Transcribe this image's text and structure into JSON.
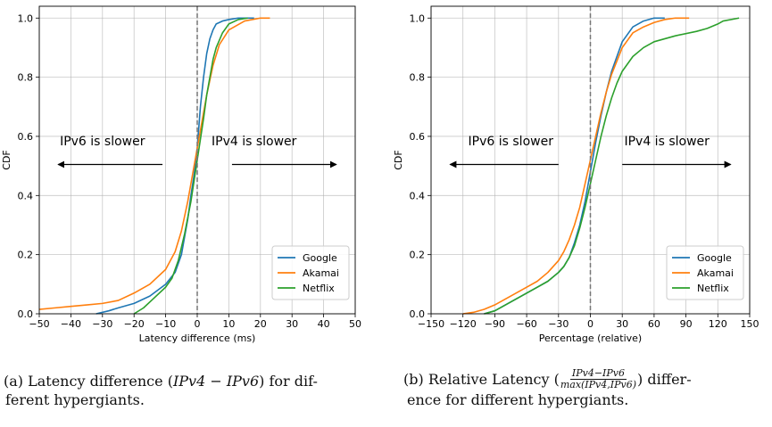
{
  "colors": {
    "Google": "#1f77b4",
    "Akamai": "#ff7f0e",
    "Netflix": "#2ca02c"
  },
  "captions": {
    "a": {
      "prefix": "(a) Latency difference (",
      "formula": "IPv4 − IPv6",
      "suffix": ") for dif-",
      "line2": "ferent hypergiants."
    },
    "b": {
      "prefix": "(b) Relative Latency (",
      "numerator": "IPv4−IPv6",
      "denominator": "max(IPv4,IPv6)",
      "suffix": ") differ-",
      "line2": "ence for different hypergiants."
    }
  },
  "chart_data": [
    {
      "type": "line",
      "xlabel": "Latency difference (ms)",
      "ylabel": "CDF",
      "xlim": [
        -50,
        50
      ],
      "ylim": [
        0,
        1.04
      ],
      "xticks": [
        -50,
        -40,
        -30,
        -20,
        -10,
        0,
        10,
        20,
        30,
        40,
        50
      ],
      "xtick_labels": [
        "−50",
        "−40",
        "−30",
        "−20",
        "−10",
        "0",
        "10",
        "20",
        "30",
        "40",
        "50"
      ],
      "yticks": [
        0,
        0.2,
        0.4,
        0.6,
        0.8,
        1.0
      ],
      "ytick_labels": [
        "0.0",
        "0.2",
        "0.4",
        "0.6",
        "0.8",
        "1.0"
      ],
      "grid": true,
      "legend": "lower-right",
      "vline_x": 0,
      "annotations": [
        {
          "text": "IPv6 is slower",
          "text_x": -30,
          "text_y": 0.57,
          "arrow_from": -11,
          "arrow_to": -44,
          "arrow_y": 0.505
        },
        {
          "text": "IPv4 is slower",
          "text_x": 18,
          "text_y": 0.57,
          "arrow_from": 11,
          "arrow_to": 44,
          "arrow_y": 0.505
        }
      ],
      "series": [
        {
          "name": "Google",
          "x": [
            -32,
            -28,
            -25,
            -20,
            -15,
            -10,
            -7,
            -5,
            -3,
            -2,
            -1,
            0,
            0.5,
            1,
            2,
            3,
            4,
            5,
            6,
            8,
            10,
            13,
            18
          ],
          "y": [
            0,
            0.01,
            0.02,
            0.035,
            0.06,
            0.1,
            0.14,
            0.2,
            0.32,
            0.4,
            0.47,
            0.56,
            0.63,
            0.7,
            0.8,
            0.88,
            0.93,
            0.96,
            0.98,
            0.99,
            0.995,
            1.0,
            1.0
          ]
        },
        {
          "name": "Akamai",
          "x": [
            -50,
            -45,
            -40,
            -35,
            -30,
            -25,
            -20,
            -15,
            -10,
            -7,
            -5,
            -3,
            -2,
            -1,
            0,
            1,
            2,
            3,
            5,
            7,
            10,
            15,
            20,
            23
          ],
          "y": [
            0.015,
            0.02,
            0.025,
            0.03,
            0.035,
            0.045,
            0.07,
            0.1,
            0.15,
            0.21,
            0.28,
            0.38,
            0.44,
            0.5,
            0.56,
            0.62,
            0.68,
            0.74,
            0.84,
            0.91,
            0.96,
            0.99,
            1.0,
            1.0
          ]
        },
        {
          "name": "Netflix",
          "x": [
            -20,
            -17,
            -14,
            -10,
            -8,
            -6,
            -4,
            -2,
            -1,
            0,
            1,
            2,
            3,
            4,
            5,
            6,
            8,
            10,
            13,
            16
          ],
          "y": [
            0,
            0.02,
            0.05,
            0.09,
            0.12,
            0.18,
            0.27,
            0.38,
            0.45,
            0.52,
            0.59,
            0.66,
            0.74,
            0.8,
            0.86,
            0.9,
            0.95,
            0.98,
            0.995,
            1.0
          ]
        }
      ]
    },
    {
      "type": "line",
      "xlabel": "Percentage (relative)",
      "ylabel": "CDF",
      "xlim": [
        -150,
        150
      ],
      "ylim": [
        0,
        1.04
      ],
      "xticks": [
        -150,
        -120,
        -90,
        -60,
        -30,
        0,
        30,
        60,
        90,
        120,
        150
      ],
      "xtick_labels": [
        "−150",
        "−120",
        "−90",
        "−60",
        "−30",
        "0",
        "30",
        "60",
        "90",
        "120",
        "150"
      ],
      "yticks": [
        0,
        0.2,
        0.4,
        0.6,
        0.8,
        1.0
      ],
      "ytick_labels": [
        "0.0",
        "0.2",
        "0.4",
        "0.6",
        "0.8",
        "1.0"
      ],
      "grid": true,
      "legend": "lower-right",
      "vline_x": 0,
      "annotations": [
        {
          "text": "IPv6 is slower",
          "text_x": -75,
          "text_y": 0.57,
          "arrow_from": -30,
          "arrow_to": -132,
          "arrow_y": 0.505
        },
        {
          "text": "IPv4 is slower",
          "text_x": 72,
          "text_y": 0.57,
          "arrow_from": 30,
          "arrow_to": 132,
          "arrow_y": 0.505
        }
      ],
      "series": [
        {
          "name": "Google",
          "x": [
            -100,
            -90,
            -80,
            -70,
            -60,
            -50,
            -40,
            -30,
            -25,
            -20,
            -15,
            -10,
            -5,
            0,
            5,
            10,
            15,
            20,
            30,
            40,
            50,
            60,
            70
          ],
          "y": [
            0,
            0.01,
            0.03,
            0.05,
            0.07,
            0.09,
            0.11,
            0.14,
            0.16,
            0.19,
            0.24,
            0.3,
            0.38,
            0.48,
            0.58,
            0.67,
            0.75,
            0.82,
            0.92,
            0.97,
            0.99,
            1.0,
            1.0
          ]
        },
        {
          "name": "Akamai",
          "x": [
            -120,
            -110,
            -100,
            -90,
            -80,
            -70,
            -60,
            -50,
            -40,
            -30,
            -25,
            -20,
            -15,
            -10,
            -5,
            0,
            5,
            10,
            15,
            20,
            30,
            40,
            50,
            60,
            70,
            80,
            93
          ],
          "y": [
            0,
            0.005,
            0.015,
            0.03,
            0.05,
            0.07,
            0.09,
            0.11,
            0.14,
            0.18,
            0.21,
            0.25,
            0.3,
            0.36,
            0.44,
            0.52,
            0.6,
            0.68,
            0.75,
            0.81,
            0.9,
            0.95,
            0.97,
            0.985,
            0.995,
            1.0,
            1.0
          ]
        },
        {
          "name": "Netflix",
          "x": [
            -100,
            -90,
            -80,
            -70,
            -60,
            -50,
            -40,
            -30,
            -25,
            -20,
            -15,
            -10,
            -5,
            0,
            5,
            10,
            15,
            20,
            25,
            30,
            40,
            50,
            60,
            80,
            100,
            110,
            120,
            125,
            140
          ],
          "y": [
            0,
            0.01,
            0.03,
            0.05,
            0.07,
            0.09,
            0.11,
            0.14,
            0.16,
            0.19,
            0.23,
            0.29,
            0.36,
            0.44,
            0.52,
            0.6,
            0.67,
            0.73,
            0.78,
            0.82,
            0.87,
            0.9,
            0.92,
            0.94,
            0.955,
            0.965,
            0.98,
            0.99,
            1.0
          ]
        }
      ]
    }
  ]
}
